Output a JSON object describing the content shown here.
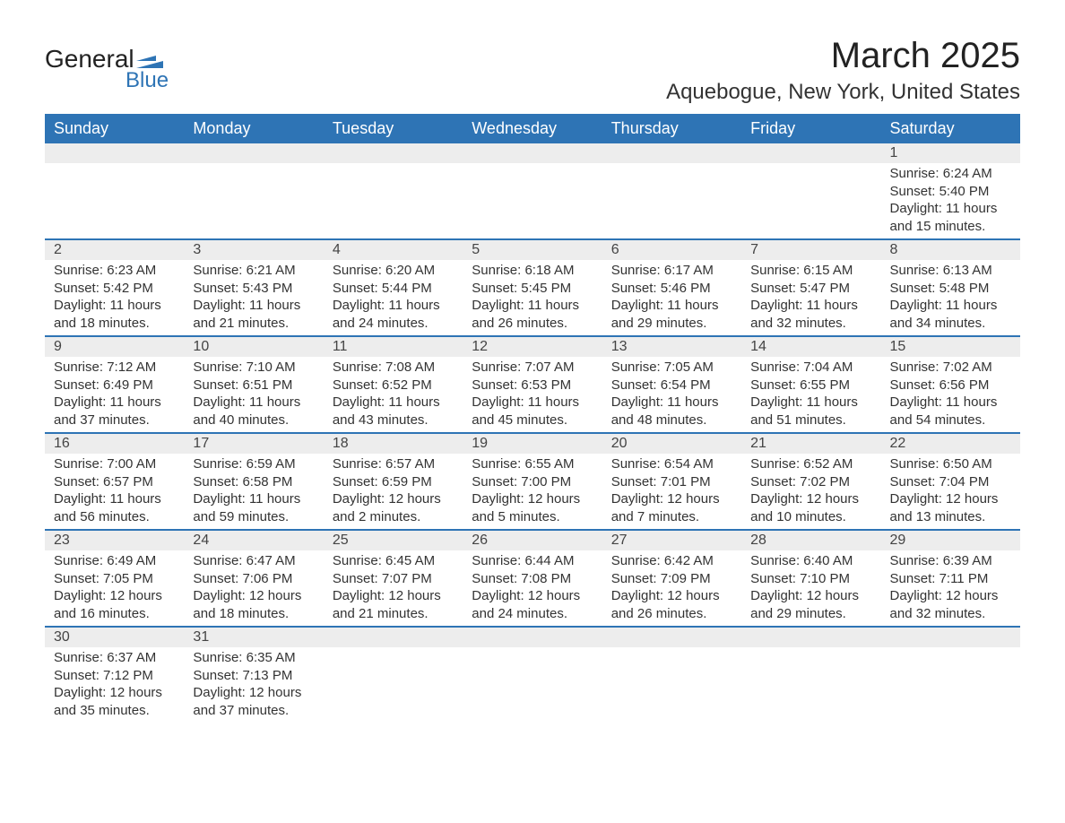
{
  "logo": {
    "line1": "General",
    "line2": "Blue",
    "accent_color": "#2e74b5"
  },
  "title": "March 2025",
  "location": "Aquebogue, New York, United States",
  "colors": {
    "header_bg": "#2e74b5",
    "header_text": "#ffffff",
    "daynum_bg": "#ededed",
    "row_border": "#2e74b5",
    "text": "#333333",
    "background": "#ffffff"
  },
  "typography": {
    "title_fontsize": 40,
    "location_fontsize": 24,
    "dayheader_fontsize": 18,
    "cell_fontsize": 15
  },
  "calendar": {
    "type": "table",
    "day_headers": [
      "Sunday",
      "Monday",
      "Tuesday",
      "Wednesday",
      "Thursday",
      "Friday",
      "Saturday"
    ],
    "weeks": [
      [
        {
          "day": "",
          "sunrise": "",
          "sunset": "",
          "daylight": ""
        },
        {
          "day": "",
          "sunrise": "",
          "sunset": "",
          "daylight": ""
        },
        {
          "day": "",
          "sunrise": "",
          "sunset": "",
          "daylight": ""
        },
        {
          "day": "",
          "sunrise": "",
          "sunset": "",
          "daylight": ""
        },
        {
          "day": "",
          "sunrise": "",
          "sunset": "",
          "daylight": ""
        },
        {
          "day": "",
          "sunrise": "",
          "sunset": "",
          "daylight": ""
        },
        {
          "day": "1",
          "sunrise": "Sunrise: 6:24 AM",
          "sunset": "Sunset: 5:40 PM",
          "daylight": "Daylight: 11 hours and 15 minutes."
        }
      ],
      [
        {
          "day": "2",
          "sunrise": "Sunrise: 6:23 AM",
          "sunset": "Sunset: 5:42 PM",
          "daylight": "Daylight: 11 hours and 18 minutes."
        },
        {
          "day": "3",
          "sunrise": "Sunrise: 6:21 AM",
          "sunset": "Sunset: 5:43 PM",
          "daylight": "Daylight: 11 hours and 21 minutes."
        },
        {
          "day": "4",
          "sunrise": "Sunrise: 6:20 AM",
          "sunset": "Sunset: 5:44 PM",
          "daylight": "Daylight: 11 hours and 24 minutes."
        },
        {
          "day": "5",
          "sunrise": "Sunrise: 6:18 AM",
          "sunset": "Sunset: 5:45 PM",
          "daylight": "Daylight: 11 hours and 26 minutes."
        },
        {
          "day": "6",
          "sunrise": "Sunrise: 6:17 AM",
          "sunset": "Sunset: 5:46 PM",
          "daylight": "Daylight: 11 hours and 29 minutes."
        },
        {
          "day": "7",
          "sunrise": "Sunrise: 6:15 AM",
          "sunset": "Sunset: 5:47 PM",
          "daylight": "Daylight: 11 hours and 32 minutes."
        },
        {
          "day": "8",
          "sunrise": "Sunrise: 6:13 AM",
          "sunset": "Sunset: 5:48 PM",
          "daylight": "Daylight: 11 hours and 34 minutes."
        }
      ],
      [
        {
          "day": "9",
          "sunrise": "Sunrise: 7:12 AM",
          "sunset": "Sunset: 6:49 PM",
          "daylight": "Daylight: 11 hours and 37 minutes."
        },
        {
          "day": "10",
          "sunrise": "Sunrise: 7:10 AM",
          "sunset": "Sunset: 6:51 PM",
          "daylight": "Daylight: 11 hours and 40 minutes."
        },
        {
          "day": "11",
          "sunrise": "Sunrise: 7:08 AM",
          "sunset": "Sunset: 6:52 PM",
          "daylight": "Daylight: 11 hours and 43 minutes."
        },
        {
          "day": "12",
          "sunrise": "Sunrise: 7:07 AM",
          "sunset": "Sunset: 6:53 PM",
          "daylight": "Daylight: 11 hours and 45 minutes."
        },
        {
          "day": "13",
          "sunrise": "Sunrise: 7:05 AM",
          "sunset": "Sunset: 6:54 PM",
          "daylight": "Daylight: 11 hours and 48 minutes."
        },
        {
          "day": "14",
          "sunrise": "Sunrise: 7:04 AM",
          "sunset": "Sunset: 6:55 PM",
          "daylight": "Daylight: 11 hours and 51 minutes."
        },
        {
          "day": "15",
          "sunrise": "Sunrise: 7:02 AM",
          "sunset": "Sunset: 6:56 PM",
          "daylight": "Daylight: 11 hours and 54 minutes."
        }
      ],
      [
        {
          "day": "16",
          "sunrise": "Sunrise: 7:00 AM",
          "sunset": "Sunset: 6:57 PM",
          "daylight": "Daylight: 11 hours and 56 minutes."
        },
        {
          "day": "17",
          "sunrise": "Sunrise: 6:59 AM",
          "sunset": "Sunset: 6:58 PM",
          "daylight": "Daylight: 11 hours and 59 minutes."
        },
        {
          "day": "18",
          "sunrise": "Sunrise: 6:57 AM",
          "sunset": "Sunset: 6:59 PM",
          "daylight": "Daylight: 12 hours and 2 minutes."
        },
        {
          "day": "19",
          "sunrise": "Sunrise: 6:55 AM",
          "sunset": "Sunset: 7:00 PM",
          "daylight": "Daylight: 12 hours and 5 minutes."
        },
        {
          "day": "20",
          "sunrise": "Sunrise: 6:54 AM",
          "sunset": "Sunset: 7:01 PM",
          "daylight": "Daylight: 12 hours and 7 minutes."
        },
        {
          "day": "21",
          "sunrise": "Sunrise: 6:52 AM",
          "sunset": "Sunset: 7:02 PM",
          "daylight": "Daylight: 12 hours and 10 minutes."
        },
        {
          "day": "22",
          "sunrise": "Sunrise: 6:50 AM",
          "sunset": "Sunset: 7:04 PM",
          "daylight": "Daylight: 12 hours and 13 minutes."
        }
      ],
      [
        {
          "day": "23",
          "sunrise": "Sunrise: 6:49 AM",
          "sunset": "Sunset: 7:05 PM",
          "daylight": "Daylight: 12 hours and 16 minutes."
        },
        {
          "day": "24",
          "sunrise": "Sunrise: 6:47 AM",
          "sunset": "Sunset: 7:06 PM",
          "daylight": "Daylight: 12 hours and 18 minutes."
        },
        {
          "day": "25",
          "sunrise": "Sunrise: 6:45 AM",
          "sunset": "Sunset: 7:07 PM",
          "daylight": "Daylight: 12 hours and 21 minutes."
        },
        {
          "day": "26",
          "sunrise": "Sunrise: 6:44 AM",
          "sunset": "Sunset: 7:08 PM",
          "daylight": "Daylight: 12 hours and 24 minutes."
        },
        {
          "day": "27",
          "sunrise": "Sunrise: 6:42 AM",
          "sunset": "Sunset: 7:09 PM",
          "daylight": "Daylight: 12 hours and 26 minutes."
        },
        {
          "day": "28",
          "sunrise": "Sunrise: 6:40 AM",
          "sunset": "Sunset: 7:10 PM",
          "daylight": "Daylight: 12 hours and 29 minutes."
        },
        {
          "day": "29",
          "sunrise": "Sunrise: 6:39 AM",
          "sunset": "Sunset: 7:11 PM",
          "daylight": "Daylight: 12 hours and 32 minutes."
        }
      ],
      [
        {
          "day": "30",
          "sunrise": "Sunrise: 6:37 AM",
          "sunset": "Sunset: 7:12 PM",
          "daylight": "Daylight: 12 hours and 35 minutes."
        },
        {
          "day": "31",
          "sunrise": "Sunrise: 6:35 AM",
          "sunset": "Sunset: 7:13 PM",
          "daylight": "Daylight: 12 hours and 37 minutes."
        },
        {
          "day": "",
          "sunrise": "",
          "sunset": "",
          "daylight": ""
        },
        {
          "day": "",
          "sunrise": "",
          "sunset": "",
          "daylight": ""
        },
        {
          "day": "",
          "sunrise": "",
          "sunset": "",
          "daylight": ""
        },
        {
          "day": "",
          "sunrise": "",
          "sunset": "",
          "daylight": ""
        },
        {
          "day": "",
          "sunrise": "",
          "sunset": "",
          "daylight": ""
        }
      ]
    ]
  }
}
